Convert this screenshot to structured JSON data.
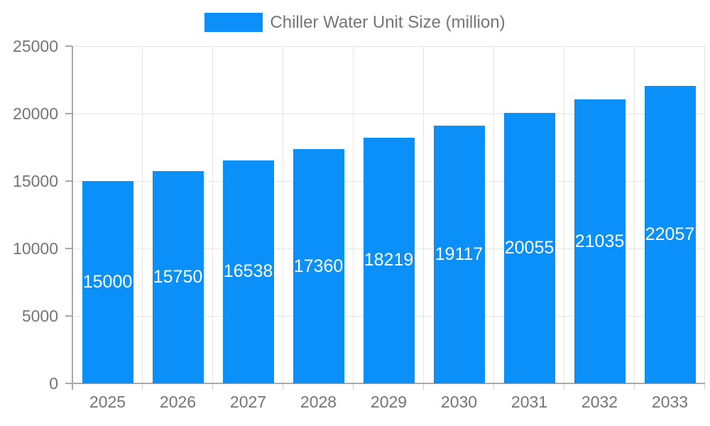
{
  "chart_data": {
    "type": "bar",
    "categories": [
      "2025",
      "2026",
      "2027",
      "2028",
      "2029",
      "2030",
      "2031",
      "2032",
      "2033"
    ],
    "series": [
      {
        "name": "Chiller Water Unit Size (million)",
        "values": [
          15000,
          15750,
          16538,
          17360,
          18219,
          19117,
          20055,
          21035,
          22057
        ]
      }
    ],
    "value_labels_shown": true,
    "legend": {
      "position": "top-center",
      "items": [
        "Chiller Water Unit Size (million)"
      ]
    },
    "y_axis": {
      "min": 0,
      "max": 25000,
      "tick_step": 5000,
      "tick_labels": [
        "0",
        "5000",
        "10000",
        "15000",
        "20000",
        "25000"
      ]
    },
    "x_axis": {
      "tick_labels": [
        "2025",
        "2026",
        "2027",
        "2028",
        "2029",
        "2030",
        "2031",
        "2032",
        "2033"
      ]
    },
    "grid": {
      "horizontal": true,
      "vertical": true
    },
    "colors": {
      "bar": "#0b8ff9",
      "grid": "#e5e5e5",
      "axis": "#a9a9a9",
      "boundary_tick": "#cfcfcf",
      "tick_label": "#757575",
      "legend_label": "#757575",
      "value_label": "#ffffff",
      "background": "#ffffff"
    }
  }
}
